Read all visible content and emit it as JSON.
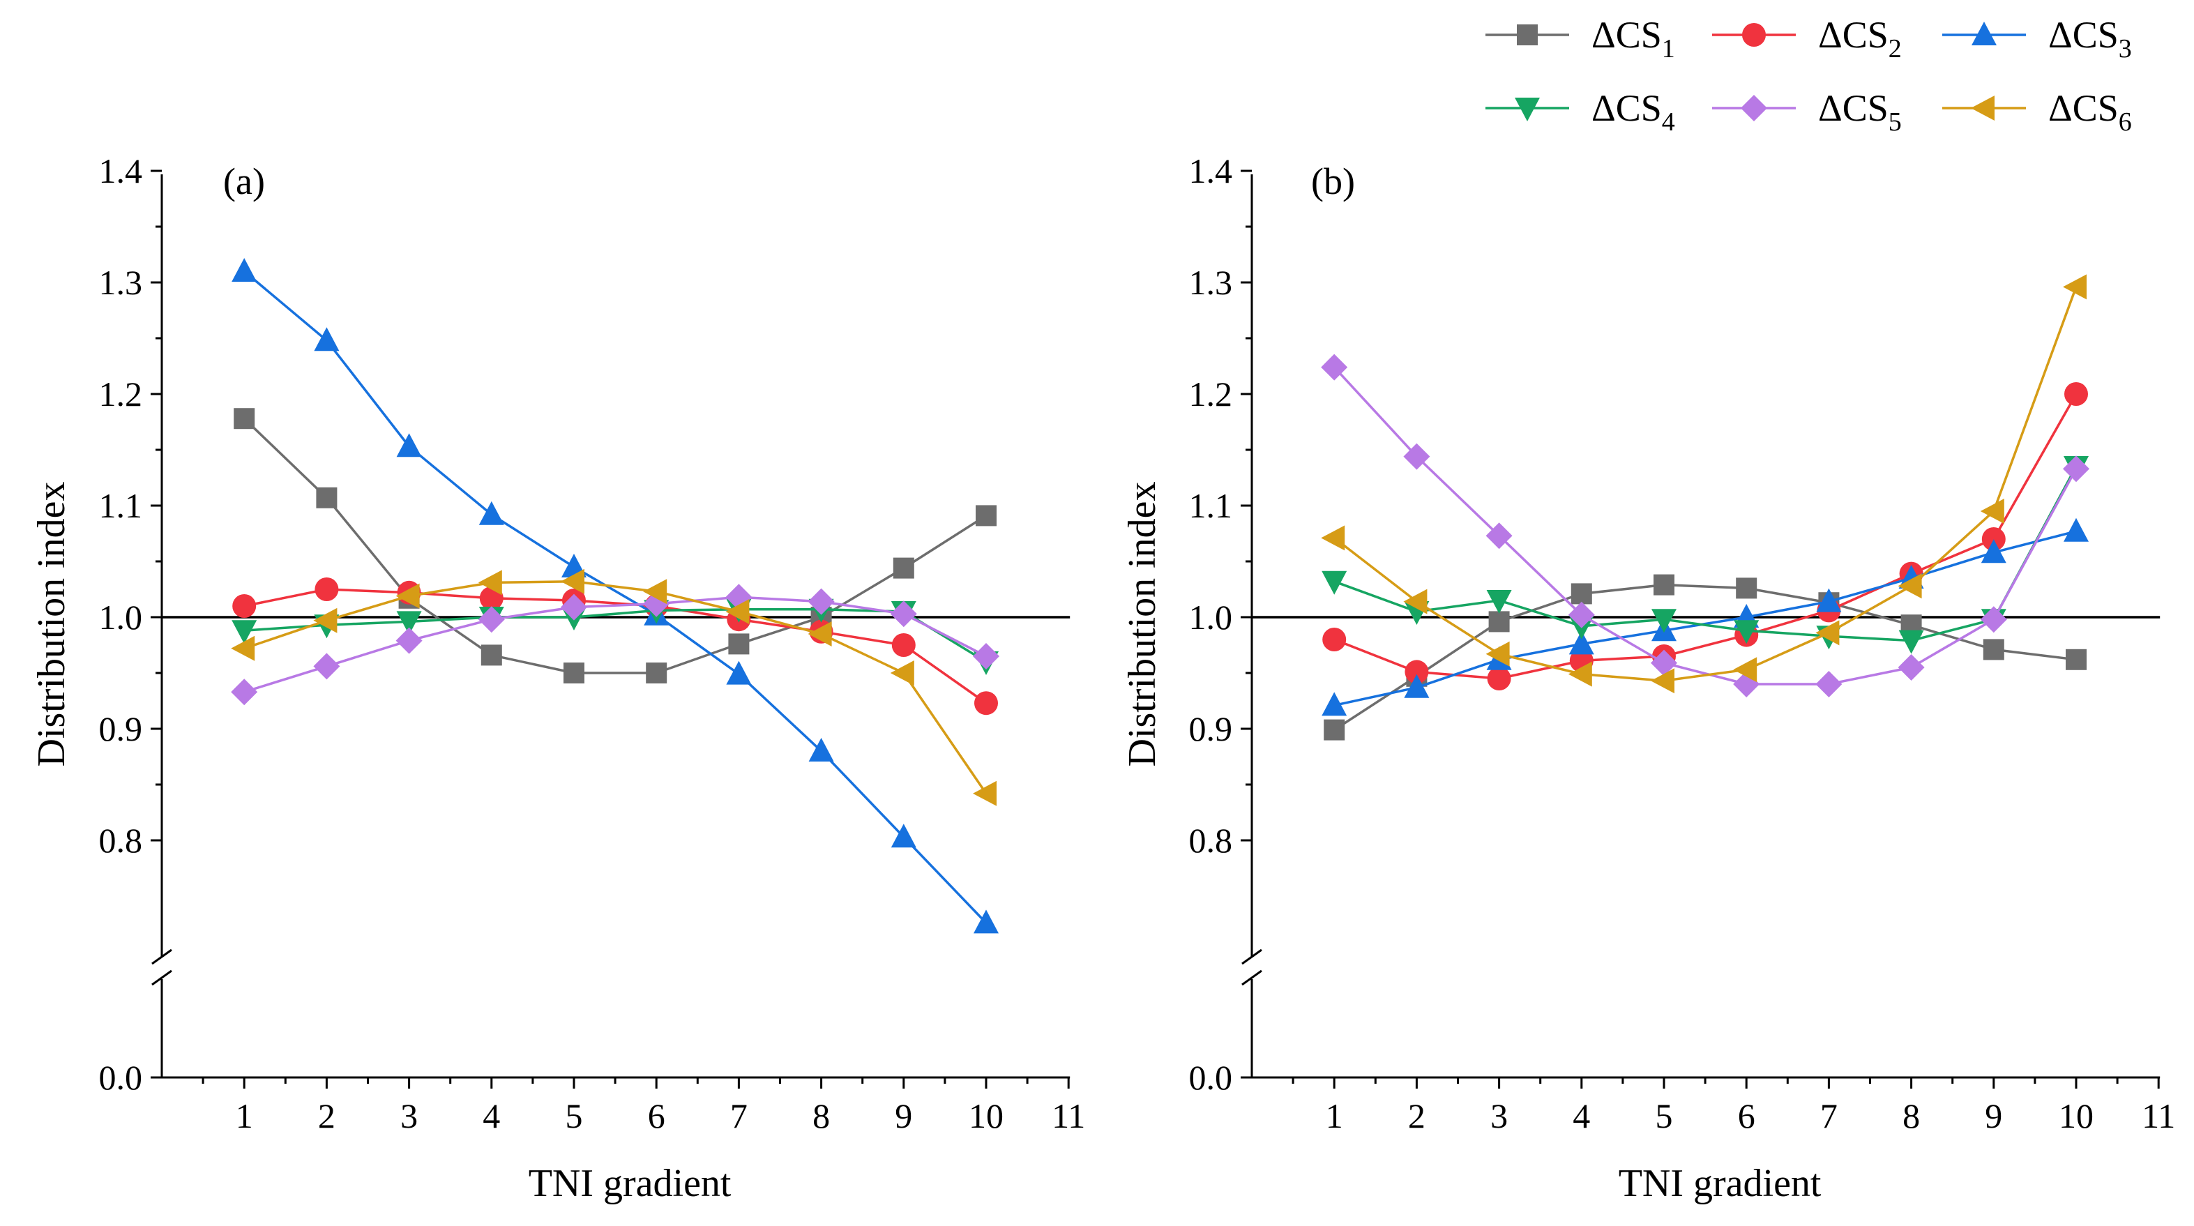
{
  "chart_data": [
    {
      "type": "line",
      "panel": "(a)",
      "xlabel": "TNI gradient",
      "ylabel": "Distribution index",
      "x_ticks": [
        "1",
        "2",
        "3",
        "4",
        "5",
        "6",
        "7",
        "8",
        "9",
        "10",
        "11"
      ],
      "y_ticks": [
        "0.0",
        "0.8",
        "0.9",
        "1.0",
        "1.1",
        "1.2",
        "1.3",
        "1.4"
      ],
      "ylim": [
        0.0,
        1.4
      ],
      "y_axis_break": [
        0.0,
        0.7
      ],
      "reference_line": 1.0,
      "x": [
        1,
        2,
        3,
        4,
        5,
        6,
        7,
        8,
        9,
        10
      ],
      "series": [
        {
          "name": "ΔCS1",
          "label_main": "ΔCS",
          "label_sub": "1",
          "color": "#6d6d6d",
          "marker": "square",
          "values": [
            1.178,
            1.107,
            1.017,
            0.966,
            0.95,
            0.95,
            0.976,
            1.0,
            1.044,
            1.091
          ]
        },
        {
          "name": "ΔCS2",
          "label_main": "ΔCS",
          "label_sub": "2",
          "color": "#f0333e",
          "marker": "circle",
          "values": [
            1.01,
            1.025,
            1.022,
            1.017,
            1.015,
            1.01,
            0.998,
            0.987,
            0.975,
            0.923
          ]
        },
        {
          "name": "ΔCS3",
          "label_main": "ΔCS",
          "label_sub": "3",
          "color": "#1671de",
          "marker": "triangle-up",
          "values": [
            1.31,
            1.248,
            1.153,
            1.092,
            1.045,
            1.002,
            0.949,
            0.88,
            0.803,
            0.726
          ]
        },
        {
          "name": "ΔCS4",
          "label_main": "ΔCS",
          "label_sub": "4",
          "color": "#16a562",
          "marker": "triangle-down",
          "values": [
            0.988,
            0.993,
            0.996,
            1.0,
            1.0,
            1.006,
            1.007,
            1.007,
            1.005,
            0.96
          ]
        },
        {
          "name": "ΔCS5",
          "label_main": "ΔCS",
          "label_sub": "5",
          "color": "#b879e5",
          "marker": "diamond",
          "values": [
            0.933,
            0.956,
            0.979,
            0.998,
            1.009,
            1.012,
            1.018,
            1.014,
            1.003,
            0.965
          ]
        },
        {
          "name": "ΔCS6",
          "label_main": "ΔCS",
          "label_sub": "6",
          "color": "#d69c16",
          "marker": "triangle-left",
          "values": [
            0.972,
            0.997,
            1.019,
            1.031,
            1.032,
            1.023,
            1.005,
            0.985,
            0.95,
            0.842
          ]
        }
      ]
    },
    {
      "type": "line",
      "panel": "(b)",
      "xlabel": "TNI gradient",
      "ylabel": "Distribution index",
      "x_ticks": [
        "1",
        "2",
        "3",
        "4",
        "5",
        "6",
        "7",
        "8",
        "9",
        "10",
        "11"
      ],
      "y_ticks": [
        "0.0",
        "0.8",
        "0.9",
        "1.0",
        "1.1",
        "1.2",
        "1.3",
        "1.4"
      ],
      "ylim": [
        0.0,
        1.4
      ],
      "y_axis_break": [
        0.0,
        0.7
      ],
      "reference_line": 1.0,
      "x": [
        1,
        2,
        3,
        4,
        5,
        6,
        7,
        8,
        9,
        10
      ],
      "series": [
        {
          "name": "ΔCS1",
          "label_main": "ΔCS",
          "label_sub": "1",
          "color": "#6d6d6d",
          "marker": "square",
          "values": [
            0.899,
            0.947,
            0.996,
            1.021,
            1.029,
            1.026,
            1.013,
            0.993,
            0.971,
            0.962
          ]
        },
        {
          "name": "ΔCS2",
          "label_main": "ΔCS",
          "label_sub": "2",
          "color": "#f0333e",
          "marker": "circle",
          "values": [
            0.98,
            0.951,
            0.945,
            0.961,
            0.965,
            0.984,
            1.006,
            1.039,
            1.07,
            1.2
          ]
        },
        {
          "name": "ΔCS3",
          "label_main": "ΔCS",
          "label_sub": "3",
          "color": "#1671de",
          "marker": "triangle-up",
          "values": [
            0.921,
            0.937,
            0.962,
            0.976,
            0.988,
            1.0,
            1.014,
            1.035,
            1.058,
            1.077
          ]
        },
        {
          "name": "ΔCS4",
          "label_main": "ΔCS",
          "label_sub": "4",
          "color": "#16a562",
          "marker": "triangle-down",
          "values": [
            1.032,
            1.005,
            1.015,
            0.992,
            0.998,
            0.988,
            0.983,
            0.979,
            0.998,
            1.135
          ]
        },
        {
          "name": "ΔCS5",
          "label_main": "ΔCS",
          "label_sub": "5",
          "color": "#b879e5",
          "marker": "diamond",
          "values": [
            1.224,
            1.144,
            1.073,
            1.002,
            0.959,
            0.94,
            0.94,
            0.955,
            0.998,
            1.133
          ]
        },
        {
          "name": "ΔCS6",
          "label_main": "ΔCS",
          "label_sub": "6",
          "color": "#d69c16",
          "marker": "triangle-left",
          "values": [
            1.071,
            1.014,
            0.967,
            0.949,
            0.943,
            0.953,
            0.986,
            1.028,
            1.095,
            1.296
          ]
        }
      ]
    }
  ]
}
